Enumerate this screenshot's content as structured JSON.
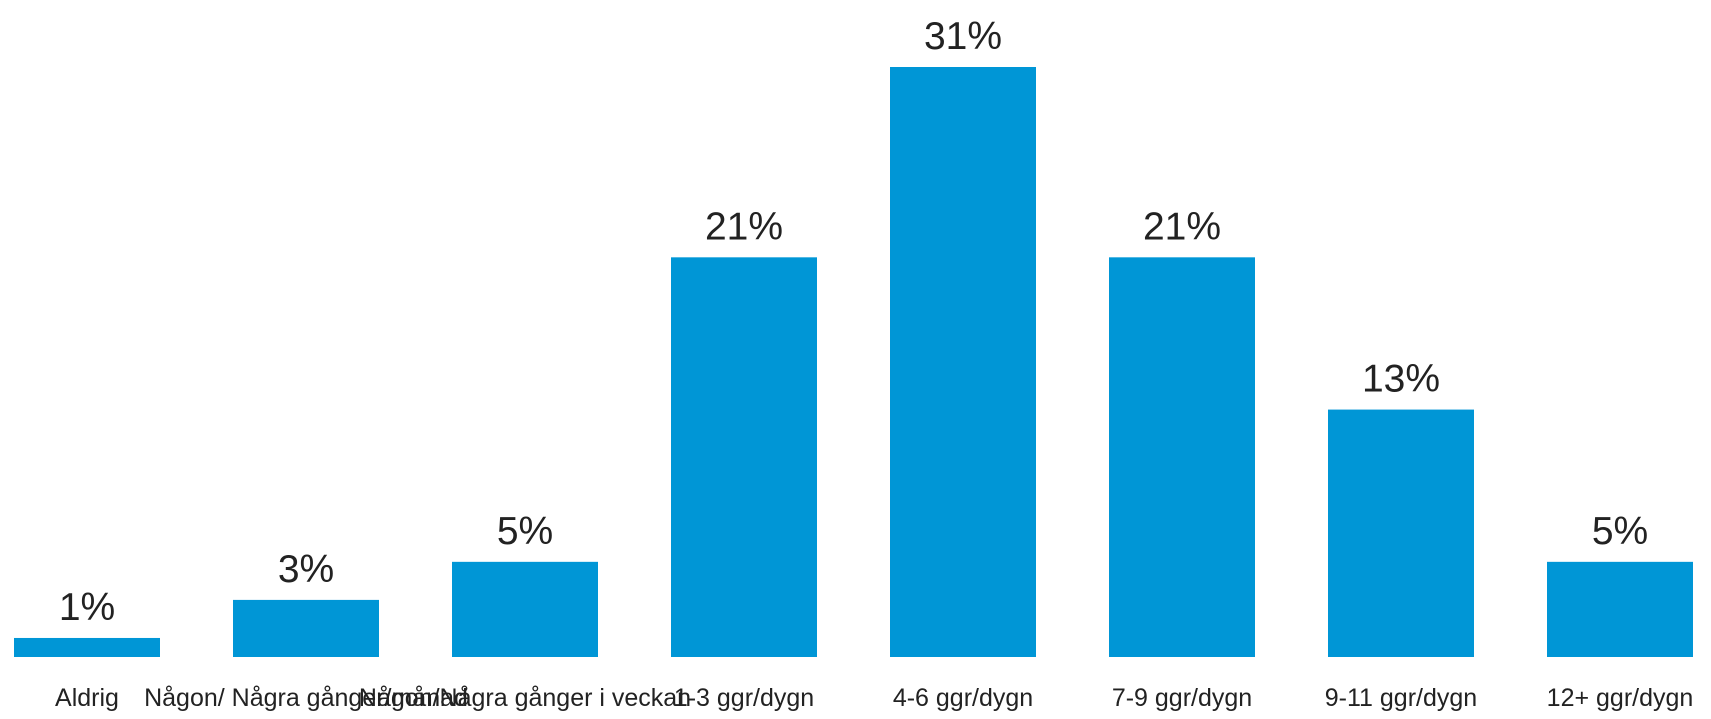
{
  "chart_data": {
    "type": "bar",
    "categories": [
      "Aldrig",
      "Någon/ Några gånger/månad",
      "Någon/Några gånger i veckan",
      "1-3 ggr/dygn",
      "4-6 ggr/dygn",
      "7-9 ggr/dygn",
      "9-11 ggr/dygn",
      "12+ ggr/dygn"
    ],
    "values": [
      1,
      3,
      5,
      21,
      31,
      21,
      13,
      5
    ],
    "value_labels": [
      "1%",
      "3%",
      "5%",
      "21%",
      "31%",
      "21%",
      "13%",
      "5%"
    ],
    "color": "#0096d6"
  }
}
